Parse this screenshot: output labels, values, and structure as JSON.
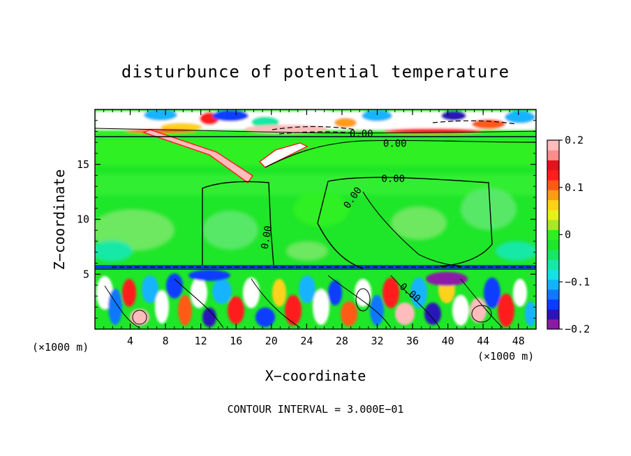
{
  "chart_data": {
    "type": "heatmap",
    "title": "disturbunce of potential temperature",
    "xlabel": "X−coordinate",
    "ylabel": "Z−coordinate",
    "x_unit": "(×1000 m)",
    "y_unit": "(×1000 m)",
    "xlim": [
      0,
      50
    ],
    "ylim": [
      0,
      20
    ],
    "x_ticks": [
      4,
      8,
      12,
      16,
      20,
      24,
      28,
      32,
      36,
      40,
      44,
      48
    ],
    "x_tick_labels": [
      "4",
      "8",
      "12",
      "16",
      "20",
      "24",
      "28",
      "32",
      "36",
      "40",
      "44",
      "48"
    ],
    "y_ticks": [
      5,
      10,
      15
    ],
    "y_tick_labels": [
      "5",
      "10",
      "15"
    ],
    "colorbar": {
      "range": [
        -0.2,
        0.2
      ],
      "tick_values": [
        0.2,
        0.1,
        0,
        -0.1,
        -0.2
      ],
      "tick_labels": [
        "0.2",
        "0.1",
        "0",
        "−0.1",
        "−0.2"
      ],
      "colors": [
        "#8c1aa6",
        "#2b13b8",
        "#0a3cff",
        "#0f78ff",
        "#12b4ff",
        "#16e0e6",
        "#16e8a8",
        "#18e664",
        "#1ee628",
        "#2ef020",
        "#a8e826",
        "#e6f01a",
        "#ffd21a",
        "#ff9c14",
        "#ff5a14",
        "#ff1e1e",
        "#e0141e",
        "#ff8c8c",
        "#ffbcbc"
      ]
    },
    "contour_labels": [
      {
        "text": "0.00",
        "x": 30.2,
        "y": 17.5
      },
      {
        "text": "0.00",
        "x": 34.0,
        "y": 16.6
      },
      {
        "text": "0.00",
        "x": 33.8,
        "y": 13.4
      },
      {
        "text": "0.00",
        "x": 29.5,
        "y": 11.8
      },
      {
        "text": "0.00",
        "x": 19.8,
        "y": 8.3
      },
      {
        "text": "0.00",
        "x": 35.5,
        "y": 3.1
      }
    ],
    "contour_interval": "CONTOUR INTERVAL = 3.000E−01"
  }
}
